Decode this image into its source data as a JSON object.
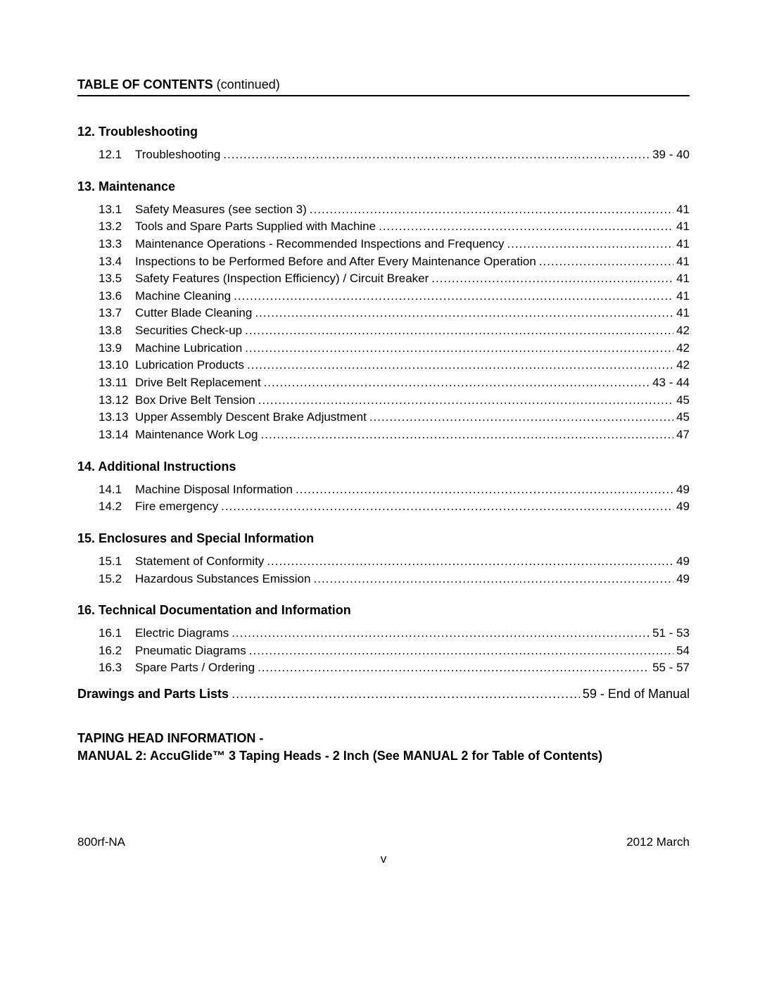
{
  "header": {
    "bold": "TABLE OF CONTENTS",
    "cont": " (continued)"
  },
  "sections": [
    {
      "title": "12. Troubleshooting",
      "items": [
        {
          "num": "12.1",
          "label": "Troubleshooting",
          "page": "39 - 40"
        }
      ]
    },
    {
      "title": "13. Maintenance",
      "items": [
        {
          "num": "13.1",
          "label": "Safety Measures (see section 3)",
          "page": "41"
        },
        {
          "num": "13.2",
          "label": "Tools and Spare Parts Supplied with Machine",
          "page": "41"
        },
        {
          "num": "13.3",
          "label": "Maintenance Operations - Recommended Inspections and Frequency",
          "page": "41"
        },
        {
          "num": "13.4",
          "label": "Inspections to be Performed Before and After Every Maintenance Operation",
          "page": "41"
        },
        {
          "num": "13.5",
          "label": "Safety Features (Inspection Efficiency) / Circuit Breaker",
          "page": "41"
        },
        {
          "num": "13.6",
          "label": "Machine Cleaning",
          "page": "41"
        },
        {
          "num": "13.7",
          "label": "Cutter Blade Cleaning",
          "page": "41"
        },
        {
          "num": "13.8",
          "label": "Securities Check-up",
          "page": "42"
        },
        {
          "num": "13.9",
          "label": "Machine Lubrication",
          "page": "42"
        },
        {
          "num": "13.10",
          "label": "Lubrication Products",
          "page": "42"
        },
        {
          "num": "13.11",
          "label": "Drive Belt Replacement",
          "page": "43 - 44"
        },
        {
          "num": "13.12",
          "label": "Box Drive Belt Tension",
          "page": "45"
        },
        {
          "num": "13.13",
          "label": "Upper Assembly Descent Brake Adjustment",
          "page": "45"
        },
        {
          "num": "13.14",
          "label": "Maintenance Work Log",
          "page": "47"
        }
      ]
    },
    {
      "title": "14. Additional Instructions",
      "items": [
        {
          "num": "14.1",
          "label": "Machine Disposal Information",
          "page": "49"
        },
        {
          "num": "14.2",
          "label": "Fire emergency",
          "page": "49"
        }
      ]
    },
    {
      "title": "15. Enclosures and Special Information",
      "items": [
        {
          "num": "15.1",
          "label": "Statement of Conformity",
          "page": "49"
        },
        {
          "num": "15.2",
          "label": "Hazardous Substances Emission",
          "page": "49"
        }
      ]
    },
    {
      "title": "16. Technical Documentation and Information",
      "items": [
        {
          "num": "16.1",
          "label": "Electric Diagrams",
          "page": "51 - 53"
        },
        {
          "num": "16.2",
          "label": "Pneumatic Diagrams",
          "page": "54"
        },
        {
          "num": "16.3",
          "label": "Spare Parts / Ordering",
          "page": "55 - 57"
        }
      ]
    }
  ],
  "drawings": {
    "label": "Drawings and Parts Lists",
    "page": "59 - End of Manual"
  },
  "taping": {
    "line1": "TAPING HEAD INFORMATION -",
    "line2": "MANUAL 2:  AccuGlide™ 3 Taping Heads - 2 Inch (See MANUAL 2 for Table of Contents)"
  },
  "footer": {
    "left": "800rf-NA",
    "right": "2012 March",
    "center": "v"
  }
}
